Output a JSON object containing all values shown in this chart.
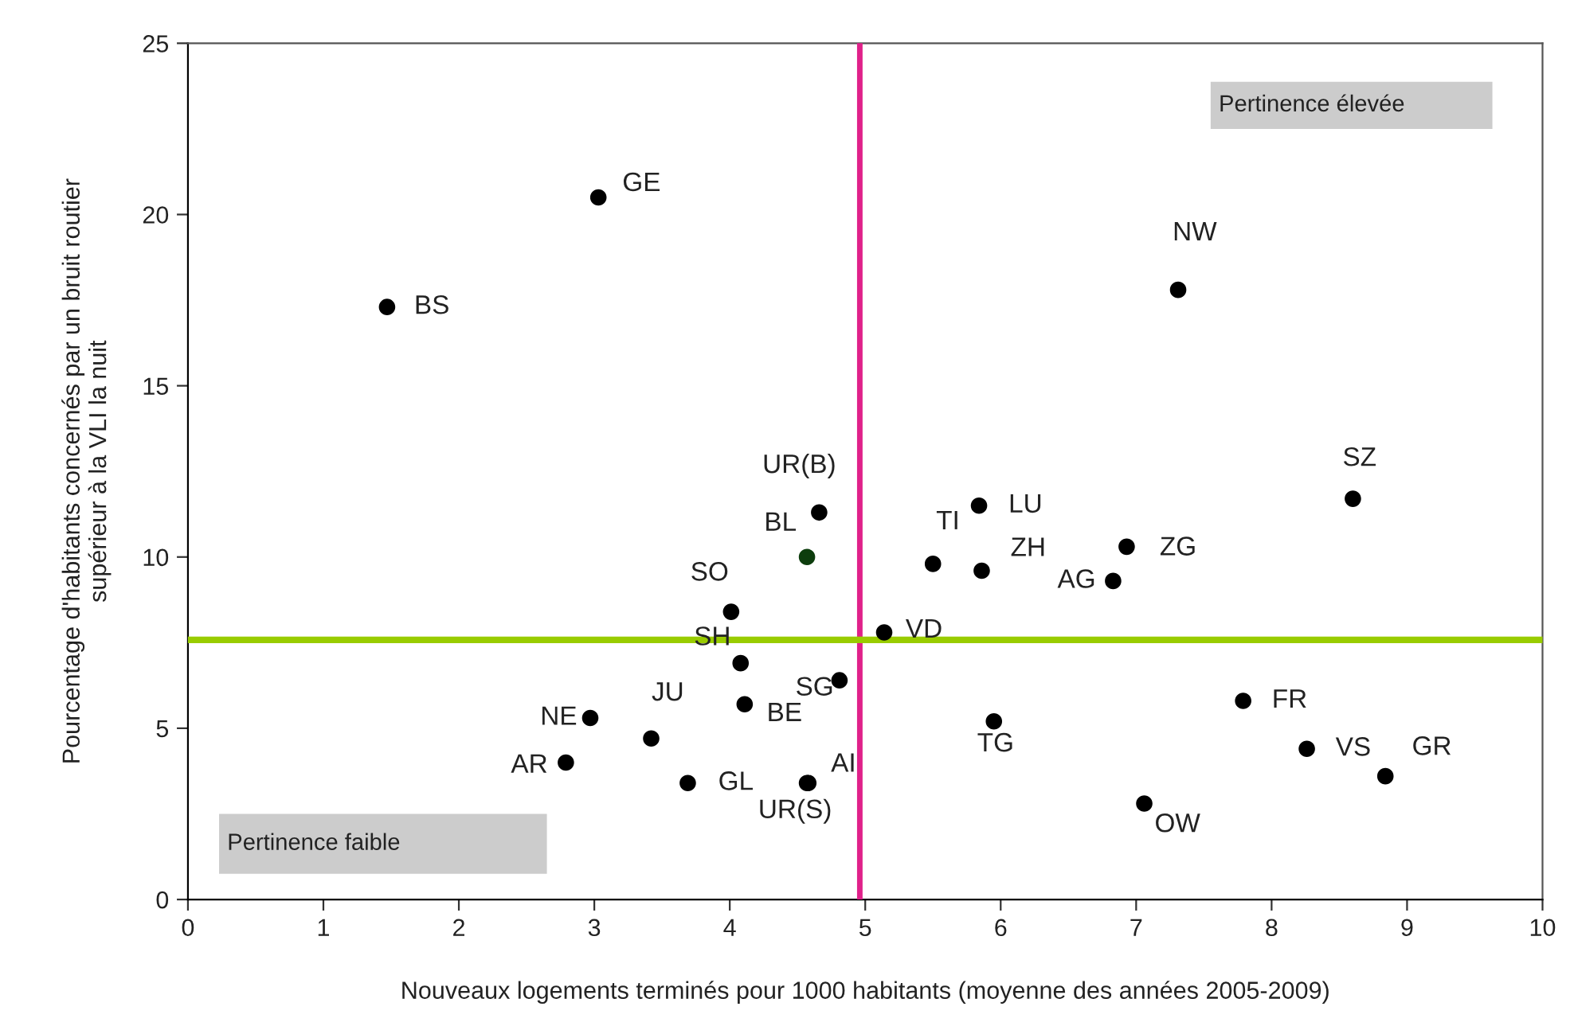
{
  "chart_data": {
    "type": "scatter",
    "xlabel": "Nouveaux logements terminés pour 1000 habitants (moyenne des années 2005-2009)",
    "ylabel": "Pourcentage d'habitants concernés par un bruit routier\nsupérieur à la VLI la nuit",
    "x": [
      1.47,
      3.03,
      4.66,
      4.57,
      4.01,
      4.08,
      4.81,
      4.11,
      2.97,
      3.42,
      2.79,
      3.69,
      4.58,
      4.57,
      5.14,
      7.31,
      8.6,
      5.84,
      5.5,
      5.86,
      6.93,
      6.83,
      5.95,
      7.79,
      8.26,
      8.84,
      7.06
    ],
    "series": [
      {
        "values": [
          17.3,
          20.5,
          11.3,
          10.0,
          8.4,
          6.9,
          6.4,
          5.7,
          5.3,
          4.7,
          4.0,
          3.4,
          3.4,
          3.4,
          7.8,
          17.8,
          11.7,
          11.5,
          9.8,
          9.6,
          10.3,
          9.3,
          5.2,
          5.8,
          4.4,
          3.6,
          2.8
        ],
        "colors": [
          "#000000",
          "#000000",
          "#000000",
          "#0d3d0d",
          "#000000",
          "#000000",
          "#000000",
          "#000000",
          "#000000",
          "#000000",
          "#000000",
          "#000000",
          "#000000",
          "#000000",
          "#000000",
          "#000000",
          "#000000",
          "#000000",
          "#000000",
          "#000000",
          "#000000",
          "#000000",
          "#000000",
          "#000000",
          "#000000",
          "#000000",
          "#000000"
        ]
      }
    ],
    "marker": "circle",
    "xlim": [
      0,
      10
    ],
    "xticks": [
      0,
      1,
      2,
      3,
      4,
      5,
      6,
      7,
      8,
      9,
      10
    ],
    "ylim": [
      0,
      25
    ],
    "yticks": [
      0,
      5,
      10,
      15,
      20,
      25
    ],
    "grid": false,
    "legend": false,
    "ref_lines": [
      {
        "axis": "x",
        "value": 4.96,
        "color": "#e0218a"
      },
      {
        "axis": "y",
        "value": 7.58,
        "color": "#99cc00"
      }
    ],
    "annotations": [
      {
        "text": "BS",
        "x": 1.47,
        "y": 17.3
      },
      {
        "text": "GE",
        "x": 3.03,
        "y": 20.5
      },
      {
        "text": "UR(B)",
        "x": 4.66,
        "y": 11.3
      },
      {
        "text": "BL",
        "x": 4.57,
        "y": 10.0
      },
      {
        "text": "SO",
        "x": 4.01,
        "y": 8.4
      },
      {
        "text": "SH",
        "x": 4.08,
        "y": 6.9
      },
      {
        "text": "SG",
        "x": 4.81,
        "y": 6.4
      },
      {
        "text": "BE",
        "x": 4.11,
        "y": 5.7
      },
      {
        "text": "NE",
        "x": 2.97,
        "y": 5.3
      },
      {
        "text": "JU",
        "x": 3.42,
        "y": 4.7
      },
      {
        "text": "AR",
        "x": 2.79,
        "y": 4.0
      },
      {
        "text": "GL",
        "x": 3.69,
        "y": 3.4
      },
      {
        "text": "UR(S)",
        "x": 4.58,
        "y": 3.4
      },
      {
        "text": "AI",
        "x": 4.57,
        "y": 3.4
      },
      {
        "text": "VD",
        "x": 5.14,
        "y": 7.8
      },
      {
        "text": "NW",
        "x": 7.31,
        "y": 17.8
      },
      {
        "text": "SZ",
        "x": 8.6,
        "y": 11.7
      },
      {
        "text": "LU",
        "x": 5.84,
        "y": 11.5
      },
      {
        "text": "TI",
        "x": 5.5,
        "y": 9.8
      },
      {
        "text": "ZH",
        "x": 5.86,
        "y": 9.6
      },
      {
        "text": "ZG",
        "x": 6.93,
        "y": 10.3
      },
      {
        "text": "AG",
        "x": 6.83,
        "y": 9.3
      },
      {
        "text": "TG",
        "x": 5.95,
        "y": 5.2
      },
      {
        "text": "FR",
        "x": 7.79,
        "y": 5.8
      },
      {
        "text": "VS",
        "x": 8.26,
        "y": 4.4
      },
      {
        "text": "GR",
        "x": 8.84,
        "y": 3.6
      },
      {
        "text": "OW",
        "x": 7.06,
        "y": 2.8
      },
      "Pertinence élevée",
      "Pertinence faible"
    ]
  }
}
